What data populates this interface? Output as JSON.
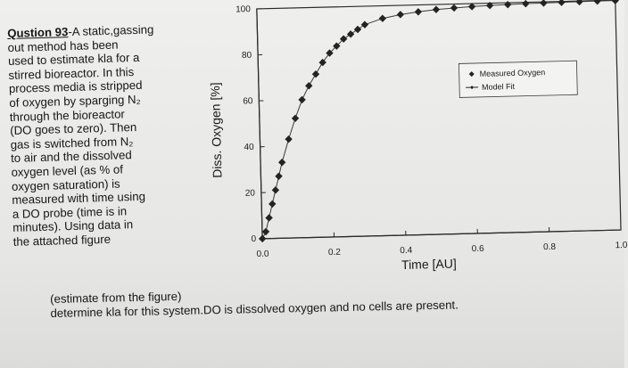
{
  "question": {
    "label": "Qustion 93",
    "lines": [
      "-A static,gassing",
      "out method has been",
      "used to estimate kla for a",
      "stirred bioreactor. In this",
      "process media is stripped",
      "of oxygen by sparging N₂",
      "through the bioreactor",
      "(DO goes to zero). Then",
      "gas is switched from N₂",
      "to air and the dissolved",
      "oxygen level (as % of",
      "oxygen saturation) is",
      "measured with time using",
      "a DO probe (time is in",
      "minutes). Using data in",
      "the attached figure"
    ],
    "tail_lines": [
      "(estimate from the figure)",
      "determine kla for this system.DO is dissolved oxygen and no cells are present."
    ]
  },
  "chart_data": {
    "type": "scatter",
    "xlabel": "Time [AU]",
    "ylabel": "Diss. Oxygen [%]",
    "xlim": [
      0.0,
      1.0
    ],
    "ylim": [
      0,
      100
    ],
    "x_ticks": [
      "0.0",
      "0.2",
      "0.4",
      "0.6",
      "0.8",
      "1.0"
    ],
    "y_ticks": [
      "0",
      "20",
      "40",
      "60",
      "80",
      "100"
    ],
    "grid": false,
    "legend": {
      "placement": "top-right",
      "entries": [
        "Measured Oxygen",
        "Model Fit"
      ]
    },
    "series": [
      {
        "name": "Measured Oxygen",
        "x": [
          0.0,
          0.01,
          0.02,
          0.03,
          0.04,
          0.05,
          0.06,
          0.08,
          0.1,
          0.12,
          0.14,
          0.16,
          0.18,
          0.2,
          0.22,
          0.24,
          0.26,
          0.28,
          0.3,
          0.35,
          0.4,
          0.45,
          0.5,
          0.55,
          0.6,
          0.65,
          0.7,
          0.75,
          0.8,
          0.85,
          0.9,
          0.95,
          1.0
        ],
        "y": [
          0,
          3,
          9,
          15,
          21,
          27,
          33,
          43,
          52,
          60,
          66,
          71,
          76,
          80,
          83,
          86,
          88,
          90,
          92,
          94.5,
          96,
          97,
          97.8,
          98.3,
          98.7,
          99,
          99.2,
          99.4,
          99.5,
          99.6,
          99.7,
          99.8,
          99.8
        ]
      },
      {
        "name": "Model Fit",
        "x": [
          0.0,
          0.01,
          0.02,
          0.03,
          0.04,
          0.05,
          0.06,
          0.08,
          0.1,
          0.12,
          0.14,
          0.16,
          0.18,
          0.2,
          0.22,
          0.24,
          0.26,
          0.28,
          0.3,
          0.35,
          0.4,
          0.45,
          0.5,
          0.55,
          0.6,
          0.65,
          0.7,
          0.75,
          0.8,
          0.85,
          0.9,
          0.95,
          1.0
        ],
        "y": [
          0,
          3,
          9,
          15,
          21,
          27,
          33,
          43,
          52,
          60,
          66,
          71,
          76,
          80,
          83,
          86,
          88,
          90,
          92,
          94.5,
          96,
          97,
          97.8,
          98.3,
          98.7,
          99,
          99.2,
          99.4,
          99.5,
          99.6,
          99.7,
          99.8,
          99.8
        ]
      }
    ]
  }
}
